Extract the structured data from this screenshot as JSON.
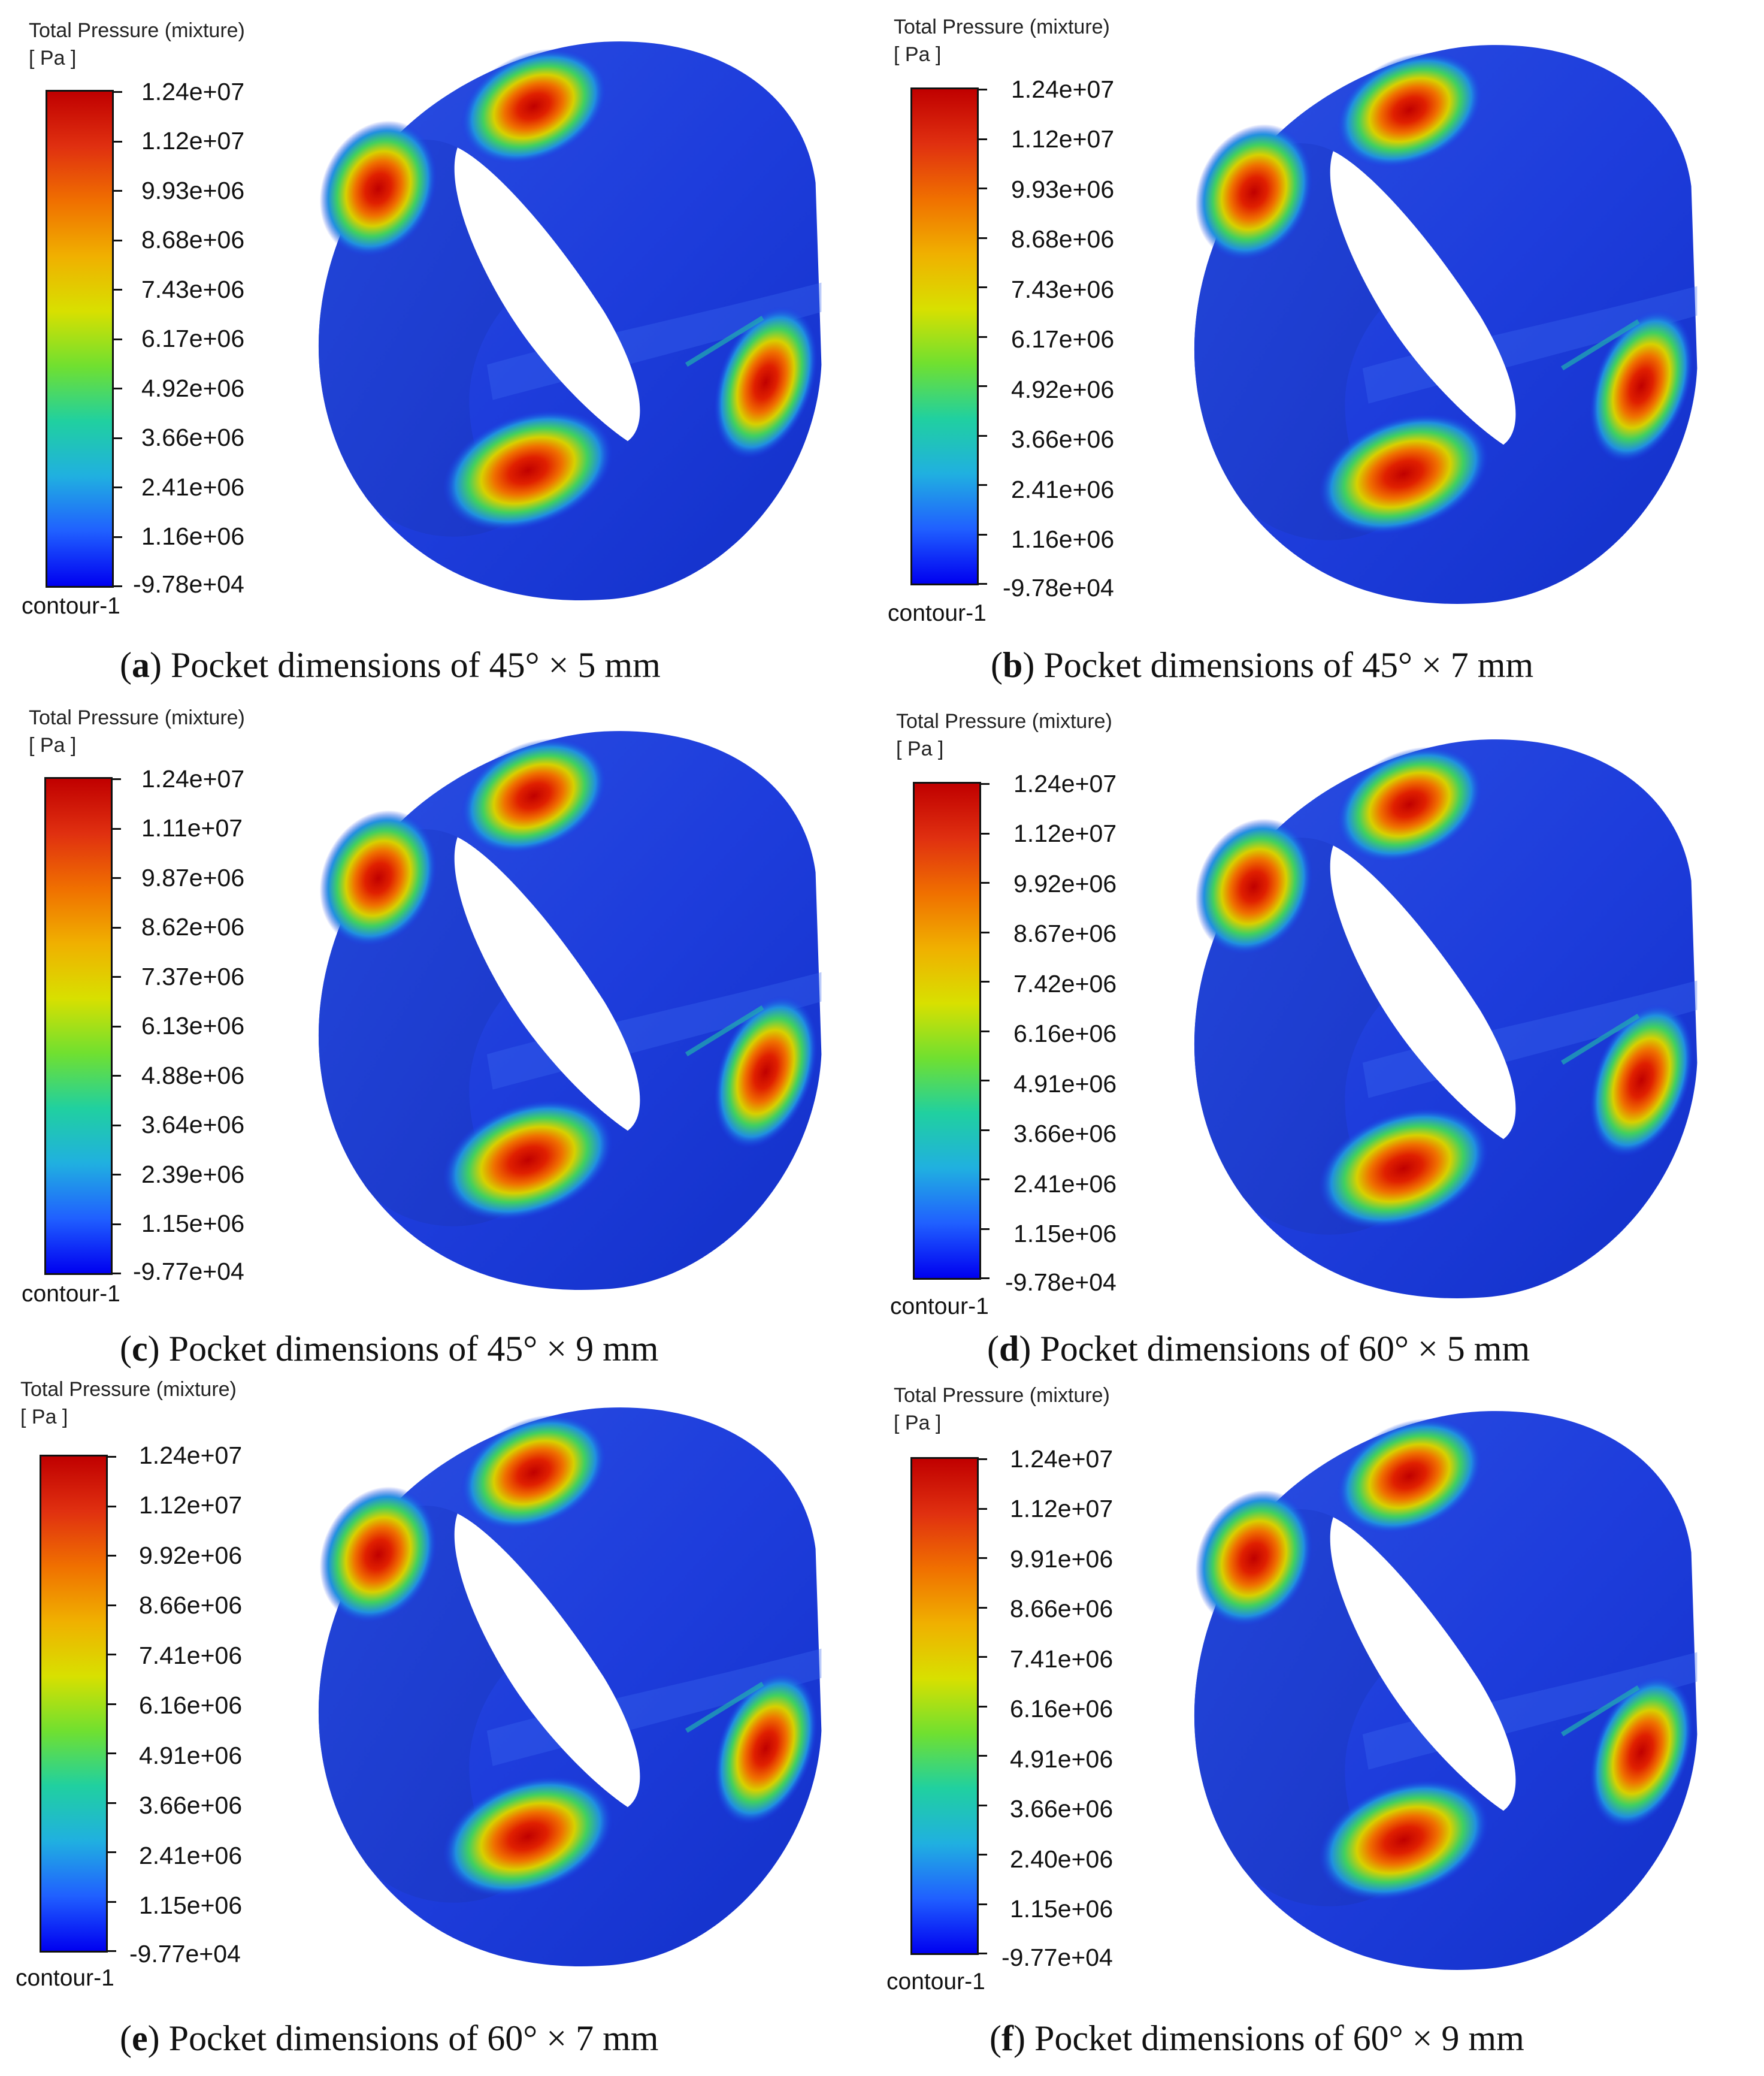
{
  "colorbar": {
    "title_line1": "Total Pressure (mixture)",
    "title_line2": "[ Pa ]",
    "footer": "contour-1",
    "gradient_colors": [
      "#c00000",
      "#e03010",
      "#f07000",
      "#f0b000",
      "#d8e000",
      "#70e030",
      "#20d0a0",
      "#20b0e0",
      "#2060ff",
      "#0000f0"
    ]
  },
  "panels": [
    {
      "letter": "a",
      "caption_text": " Pocket dimensions of 45° × 5 mm",
      "ticks": [
        "1.24e+07",
        "1.12e+07",
        "9.93e+06",
        "8.68e+06",
        "7.43e+06",
        "6.17e+06",
        "4.92e+06",
        "3.66e+06",
        "2.41e+06",
        "1.16e+06",
        "-9.78e+04"
      ]
    },
    {
      "letter": "b",
      "caption_text": " Pocket dimensions of 45° × 7 mm",
      "ticks": [
        "1.24e+07",
        "1.12e+07",
        "9.93e+06",
        "8.68e+06",
        "7.43e+06",
        "6.17e+06",
        "4.92e+06",
        "3.66e+06",
        "2.41e+06",
        "1.16e+06",
        "-9.78e+04"
      ]
    },
    {
      "letter": "c",
      "caption_text": " Pocket dimensions of 45° × 9 mm",
      "ticks": [
        "1.24e+07",
        "1.11e+07",
        "9.87e+06",
        "8.62e+06",
        "7.37e+06",
        "6.13e+06",
        "4.88e+06",
        "3.64e+06",
        "2.39e+06",
        "1.15e+06",
        "-9.77e+04"
      ]
    },
    {
      "letter": "d",
      "caption_text": " Pocket dimensions of 60° × 5 mm",
      "ticks": [
        "1.24e+07",
        "1.12e+07",
        "9.92e+06",
        "8.67e+06",
        "7.42e+06",
        "6.16e+06",
        "4.91e+06",
        "3.66e+06",
        "2.41e+06",
        "1.15e+06",
        "-9.78e+04"
      ]
    },
    {
      "letter": "e",
      "caption_text": " Pocket dimensions of 60° × 7 mm",
      "ticks": [
        "1.24e+07",
        "1.12e+07",
        "9.92e+06",
        "8.66e+06",
        "7.41e+06",
        "6.16e+06",
        "4.91e+06",
        "3.66e+06",
        "2.41e+06",
        "1.15e+06",
        "-9.77e+04"
      ]
    },
    {
      "letter": "f",
      "caption_text": " Pocket dimensions of 60° × 9 mm",
      "ticks": [
        "1.24e+07",
        "1.12e+07",
        "9.91e+06",
        "8.66e+06",
        "7.41e+06",
        "6.16e+06",
        "4.91e+06",
        "3.66e+06",
        "2.40e+06",
        "1.15e+06",
        "-9.77e+04"
      ]
    }
  ]
}
